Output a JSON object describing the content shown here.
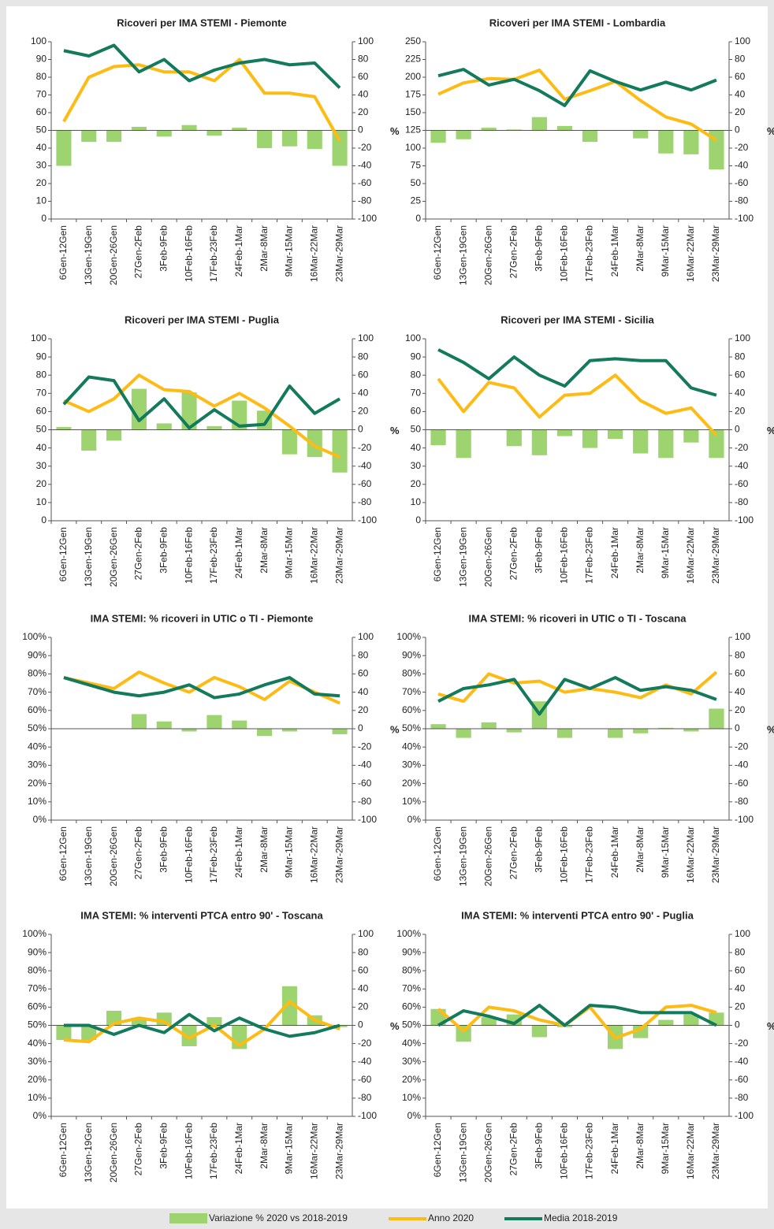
{
  "chart_data": [
    {
      "type": "combo",
      "title": "Ricoveri per IMA STEMI - Piemonte",
      "y2label": "%",
      "categories": [
        "6Gen-12Gen",
        "13Gen-19Gen",
        "20Gen-26Gen",
        "27Gen-2Feb",
        "3Feb-9Feb",
        "10Feb-16Feb",
        "17Feb-23Feb",
        "24Feb-1Mar",
        "2Mar-8Mar",
        "9Mar-15Mar",
        "16Mar-22Mar",
        "23Mar-29Mar"
      ],
      "ylim": [
        0,
        100
      ],
      "yticks": [
        0,
        10,
        20,
        30,
        40,
        50,
        60,
        70,
        80,
        90,
        100
      ],
      "y2lim": [
        -100,
        100
      ],
      "y2ticks": [
        -100,
        -80,
        -60,
        -40,
        -20,
        0,
        20,
        40,
        60,
        80,
        100
      ],
      "series": [
        {
          "name": "Variazione % 2020 vs 2018-2019",
          "color": "#9ed46f",
          "axis": "y2",
          "values": [
            -40,
            -13,
            -13,
            4,
            -7,
            6,
            -6,
            3,
            -20,
            -18,
            -21,
            -40
          ]
        },
        {
          "name": "Anno 2020",
          "color": "#fdbb14",
          "values": [
            55,
            80,
            86,
            87,
            83,
            83,
            78,
            90,
            71,
            71,
            69,
            44
          ]
        },
        {
          "name": "Media 2018-2019",
          "color": "#137a5c",
          "values": [
            95,
            92,
            98,
            83,
            90,
            78,
            84,
            88,
            90,
            87,
            88,
            74
          ]
        }
      ]
    },
    {
      "type": "combo",
      "title": "Ricoveri per IMA STEMI - Lombardia",
      "y2label": "%",
      "categories": [
        "6Gen-12Gen",
        "13Gen-19Gen",
        "20Gen-26Gen",
        "27Gen-2Feb",
        "3Feb-9Feb",
        "10Feb-16Feb",
        "17Feb-23Feb",
        "24Feb-1Mar",
        "2Mar-8Mar",
        "9Mar-15Mar",
        "16Mar-22Mar",
        "23Mar-29Mar"
      ],
      "ylim": [
        0,
        250
      ],
      "yticks": [
        0,
        25,
        50,
        75,
        100,
        125,
        150,
        175,
        200,
        225,
        250
      ],
      "y2lim": [
        -100,
        100
      ],
      "y2ticks": [
        -100,
        -80,
        -60,
        -40,
        -20,
        0,
        20,
        40,
        60,
        80,
        100
      ],
      "series": [
        {
          "color": "#9ed46f",
          "axis": "y2",
          "values": [
            -14,
            -10,
            3,
            1,
            15,
            5,
            -13,
            0,
            -9,
            -26,
            -27,
            -44
          ]
        },
        {
          "color": "#fdbb14",
          "values": [
            176,
            192,
            198,
            197,
            210,
            169,
            181,
            194,
            167,
            144,
            134,
            111
          ]
        },
        {
          "color": "#137a5c",
          "values": [
            202,
            211,
            189,
            197,
            181,
            160,
            209,
            194,
            182,
            193,
            182,
            196
          ]
        }
      ]
    },
    {
      "type": "combo",
      "title": "Ricoveri per IMA STEMI - Puglia",
      "y2label": "%",
      "categories": [
        "6Gen-12Gen",
        "13Gen-19Gen",
        "20Gen-26Gen",
        "27Gen-2Feb",
        "3Feb-9Feb",
        "10Feb-16Feb",
        "17Feb-23Feb",
        "24Feb-1Mar",
        "2Mar-8Mar",
        "9Mar-15Mar",
        "16Mar-22Mar",
        "23Mar-29Mar"
      ],
      "ylim": [
        0,
        100
      ],
      "yticks": [
        0,
        10,
        20,
        30,
        40,
        50,
        60,
        70,
        80,
        90,
        100
      ],
      "y2lim": [
        -100,
        100
      ],
      "y2ticks": [
        -100,
        -80,
        -60,
        -40,
        -20,
        0,
        20,
        40,
        60,
        80,
        100
      ],
      "series": [
        {
          "color": "#9ed46f",
          "axis": "y2",
          "values": [
            3,
            -23,
            -12,
            45,
            7,
            41,
            4,
            32,
            21,
            -27,
            -30,
            -47
          ]
        },
        {
          "color": "#fdbb14",
          "values": [
            66,
            60,
            67,
            80,
            72,
            71,
            63,
            70,
            62,
            52,
            41,
            35
          ]
        },
        {
          "color": "#137a5c",
          "values": [
            64,
            79,
            77,
            55,
            67,
            51,
            61,
            52,
            53,
            74,
            59,
            67
          ]
        }
      ]
    },
    {
      "type": "combo",
      "title": "Ricoveri per IMA STEMI - Sicilia",
      "y2label": "%",
      "categories": [
        "6Gen-12Gen",
        "13Gen-19Gen",
        "20Gen-26Gen",
        "27Gen-2Feb",
        "3Feb-9Feb",
        "10Feb-16Feb",
        "17Feb-23Feb",
        "24Feb-1Mar",
        "2Mar-8Mar",
        "9Mar-15Mar",
        "16Mar-22Mar",
        "23Mar-29Mar"
      ],
      "ylim": [
        0,
        100
      ],
      "yticks": [
        0,
        10,
        20,
        30,
        40,
        50,
        60,
        70,
        80,
        90,
        100
      ],
      "y2lim": [
        -100,
        100
      ],
      "y2ticks": [
        -100,
        -80,
        -60,
        -40,
        -20,
        0,
        20,
        40,
        60,
        80,
        100
      ],
      "series": [
        {
          "color": "#9ed46f",
          "axis": "y2",
          "values": [
            -17,
            -31,
            0,
            -18,
            -28,
            -7,
            -20,
            -10,
            -26,
            -31,
            -14,
            -31
          ]
        },
        {
          "color": "#fdbb14",
          "values": [
            78,
            60,
            76,
            73,
            57,
            69,
            70,
            80,
            66,
            59,
            62,
            47
          ]
        },
        {
          "color": "#137a5c",
          "values": [
            94,
            87,
            78,
            90,
            80,
            74,
            88,
            89,
            88,
            88,
            73,
            69
          ]
        }
      ]
    },
    {
      "type": "combo",
      "title": "IMA STEMI: % ricoveri in UTIC o TI - Piemonte",
      "y2label": "%",
      "categories": [
        "6Gen-12Gen",
        "13Gen-19Gen",
        "20Gen-26Gen",
        "27Gen-2Feb",
        "3Feb-9Feb",
        "10Feb-16Feb",
        "17Feb-23Feb",
        "24Feb-1Mar",
        "2Mar-8Mar",
        "9Mar-15Mar",
        "16Mar-22Mar",
        "23Mar-29Mar"
      ],
      "ylim": [
        0,
        100
      ],
      "yticks": [
        {
          "value": 0,
          "label": "0%"
        },
        {
          "value": 10,
          "label": "10%"
        },
        {
          "value": 20,
          "label": "20%"
        },
        {
          "value": 30,
          "label": "30%"
        },
        {
          "value": 40,
          "label": "40%"
        },
        {
          "value": 50,
          "label": "50%"
        },
        {
          "value": 60,
          "label": "60%"
        },
        {
          "value": 70,
          "label": "70%"
        },
        {
          "value": 80,
          "label": "80%"
        },
        {
          "value": 90,
          "label": "90%"
        },
        {
          "value": 100,
          "label": "100%"
        }
      ],
      "y2lim": [
        -100,
        100
      ],
      "y2ticks": [
        -100,
        -80,
        -60,
        -40,
        -20,
        0,
        20,
        40,
        60,
        80,
        100
      ],
      "series": [
        {
          "color": "#9ed46f",
          "axis": "y2",
          "values": [
            0,
            0,
            0,
            16,
            8,
            -3,
            15,
            9,
            -8,
            -3,
            0,
            -6
          ]
        },
        {
          "color": "#fdbb14",
          "values": [
            78,
            75,
            72,
            81,
            75,
            70,
            78,
            73,
            66,
            76,
            70,
            64
          ]
        },
        {
          "color": "#137a5c",
          "values": [
            78,
            74,
            70,
            68,
            70,
            74,
            67,
            69,
            74,
            78,
            69,
            68
          ]
        }
      ]
    },
    {
      "type": "combo",
      "title": "IMA STEMI: % ricoveri in UTIC o TI - Toscana",
      "y2label": "%",
      "categories": [
        "6Gen-12Gen",
        "13Gen-19Gen",
        "20Gen-26Gen",
        "27Gen-2Feb",
        "3Feb-9Feb",
        "10Feb-16Feb",
        "17Feb-23Feb",
        "24Feb-1Mar",
        "2Mar-8Mar",
        "9Mar-15Mar",
        "16Mar-22Mar",
        "23Mar-29Mar"
      ],
      "ylim": [
        0,
        100
      ],
      "yticks": [
        {
          "value": 0,
          "label": "0%"
        },
        {
          "value": 10,
          "label": "10%"
        },
        {
          "value": 20,
          "label": "20%"
        },
        {
          "value": 30,
          "label": "30%"
        },
        {
          "value": 40,
          "label": "40%"
        },
        {
          "value": 50,
          "label": "50%"
        },
        {
          "value": 60,
          "label": "60%"
        },
        {
          "value": 70,
          "label": "70%"
        },
        {
          "value": 80,
          "label": "80%"
        },
        {
          "value": 90,
          "label": "90%"
        },
        {
          "value": 100,
          "label": "100%"
        }
      ],
      "y2lim": [
        -100,
        100
      ],
      "y2ticks": [
        -100,
        -80,
        -60,
        -40,
        -20,
        0,
        20,
        40,
        60,
        80,
        100
      ],
      "series": [
        {
          "color": "#9ed46f",
          "axis": "y2",
          "values": [
            5,
            -10,
            7,
            -4,
            30,
            -10,
            0,
            -10,
            -5,
            1,
            -3,
            22
          ]
        },
        {
          "color": "#fdbb14",
          "values": [
            69,
            65,
            80,
            75,
            76,
            70,
            72,
            70,
            67,
            74,
            69,
            81
          ]
        },
        {
          "color": "#137a5c",
          "values": [
            65,
            72,
            74,
            77,
            58,
            77,
            72,
            78,
            71,
            73,
            71,
            66
          ]
        }
      ]
    },
    {
      "type": "combo",
      "title": "IMA STEMI: % interventi PTCA entro 90' - Toscana",
      "y2label": "%",
      "categories": [
        "6Gen-12Gen",
        "13Gen-19Gen",
        "20Gen-26Gen",
        "27Gen-2Feb",
        "3Feb-9Feb",
        "10Feb-16Feb",
        "17Feb-23Feb",
        "24Feb-1Mar",
        "2Mar-8Mar",
        "9Mar-15Mar",
        "16Mar-22Mar",
        "23Mar-29Mar"
      ],
      "ylim": [
        0,
        100
      ],
      "yticks": [
        {
          "value": 0,
          "label": "0%"
        },
        {
          "value": 10,
          "label": "10%"
        },
        {
          "value": 20,
          "label": "20%"
        },
        {
          "value": 30,
          "label": "30%"
        },
        {
          "value": 40,
          "label": "40%"
        },
        {
          "value": 50,
          "label": "50%"
        },
        {
          "value": 60,
          "label": "60%"
        },
        {
          "value": 70,
          "label": "70%"
        },
        {
          "value": 80,
          "label": "80%"
        },
        {
          "value": 90,
          "label": "90%"
        },
        {
          "value": 100,
          "label": "100%"
        }
      ],
      "y2lim": [
        -100,
        100
      ],
      "y2ticks": [
        -100,
        -80,
        -60,
        -40,
        -20,
        0,
        20,
        40,
        60,
        80,
        100
      ],
      "series": [
        {
          "color": "#9ed46f",
          "axis": "y2",
          "values": [
            -16,
            -16,
            16,
            8,
            14,
            -23,
            9,
            -26,
            0,
            43,
            11,
            -2
          ]
        },
        {
          "color": "#fdbb14",
          "values": [
            42,
            41,
            51,
            54,
            52,
            43,
            50,
            39,
            48,
            63,
            53,
            48
          ]
        },
        {
          "color": "#137a5c",
          "values": [
            50,
            50,
            45,
            50,
            46,
            56,
            47,
            54,
            48,
            44,
            46,
            50
          ]
        }
      ]
    },
    {
      "type": "combo",
      "title": "IMA STEMI: % interventi PTCA entro 90' - Puglia",
      "y2label": "%",
      "categories": [
        "6Gen-12Gen",
        "13Gen-19Gen",
        "20Gen-26Gen",
        "27Gen-2Feb",
        "3Feb-9Feb",
        "10Feb-16Feb",
        "17Feb-23Feb",
        "24Feb-1Mar",
        "2Mar-8Mar",
        "9Mar-15Mar",
        "16Mar-22Mar",
        "23Mar-29Mar"
      ],
      "ylim": [
        0,
        100
      ],
      "yticks": [
        {
          "value": 0,
          "label": "0%"
        },
        {
          "value": 10,
          "label": "10%"
        },
        {
          "value": 20,
          "label": "20%"
        },
        {
          "value": 30,
          "label": "30%"
        },
        {
          "value": 40,
          "label": "40%"
        },
        {
          "value": 50,
          "label": "50%"
        },
        {
          "value": 60,
          "label": "60%"
        },
        {
          "value": 70,
          "label": "70%"
        },
        {
          "value": 80,
          "label": "80%"
        },
        {
          "value": 90,
          "label": "90%"
        },
        {
          "value": 100,
          "label": "100%"
        }
      ],
      "y2lim": [
        -100,
        100
      ],
      "y2ticks": [
        -100,
        -80,
        -60,
        -40,
        -20,
        0,
        20,
        40,
        60,
        80,
        100
      ],
      "series": [
        {
          "color": "#9ed46f",
          "axis": "y2",
          "values": [
            18,
            -18,
            9,
            12,
            -13,
            -2,
            0,
            -26,
            -14,
            6,
            12,
            14
          ]
        },
        {
          "color": "#fdbb14",
          "values": [
            59,
            47,
            60,
            58,
            53,
            50,
            60,
            43,
            48,
            60,
            61,
            57
          ]
        },
        {
          "color": "#137a5c",
          "values": [
            50,
            58,
            55,
            51,
            61,
            50,
            61,
            60,
            57,
            57,
            57,
            50
          ]
        }
      ]
    }
  ]
}
